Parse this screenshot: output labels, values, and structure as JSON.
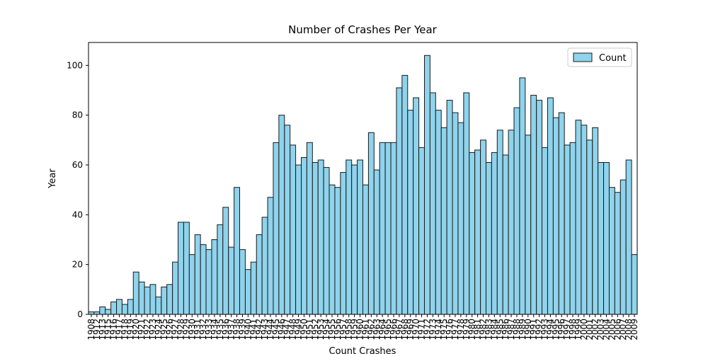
{
  "chart_data": {
    "type": "bar",
    "title": "Number of Crashes Per Year",
    "x_label": "Count Crashes",
    "y_label": "Year",
    "categories": [
      "1908",
      "1912",
      "1913",
      "1915",
      "1916",
      "1917",
      "1918",
      "1919",
      "1920",
      "1921",
      "1922",
      "1923",
      "1924",
      "1925",
      "1926",
      "1927",
      "1928",
      "1929",
      "1930",
      "1931",
      "1932",
      "1933",
      "1934",
      "1935",
      "1936",
      "1937",
      "1938",
      "1939",
      "1940",
      "1941",
      "1942",
      "1943",
      "1944",
      "1945",
      "1946",
      "1947",
      "1948",
      "1949",
      "1950",
      "1951",
      "1952",
      "1953",
      "1954",
      "1955",
      "1956",
      "1957",
      "1958",
      "1959",
      "1960",
      "1961",
      "1962",
      "1963",
      "1964",
      "1965",
      "1966",
      "1967",
      "1968",
      "1969",
      "1970",
      "1971",
      "1972",
      "1973",
      "1974",
      "1975",
      "1976",
      "1977",
      "1978",
      "1979",
      "1980",
      "1981",
      "1982",
      "1983",
      "1984",
      "1985",
      "1986",
      "1987",
      "1988",
      "1989",
      "1990",
      "1991",
      "1992",
      "1993",
      "1994",
      "1995",
      "1996",
      "1997",
      "1998",
      "1999",
      "2000",
      "2001",
      "2002",
      "2003",
      "2004",
      "2005",
      "2006",
      "2007",
      "2008",
      "2009"
    ],
    "series": [
      {
        "name": "Count",
        "color": "#8fd3ec",
        "values": [
          1,
          1,
          3,
          2,
          5,
          6,
          4,
          6,
          17,
          13,
          11,
          12,
          7,
          11,
          12,
          21,
          37,
          37,
          24,
          32,
          28,
          26,
          30,
          36,
          43,
          27,
          51,
          26,
          18,
          21,
          32,
          39,
          47,
          69,
          80,
          76,
          68,
          60,
          63,
          69,
          61,
          62,
          59,
          52,
          51,
          57,
          62,
          60,
          62,
          52,
          73,
          58,
          69,
          69,
          69,
          91,
          96,
          82,
          87,
          67,
          104,
          89,
          82,
          75,
          86,
          81,
          77,
          89,
          65,
          66,
          70,
          61,
          65,
          74,
          64,
          74,
          83,
          95,
          72,
          88,
          86,
          67,
          87,
          79,
          81,
          68,
          69,
          78,
          76,
          70,
          75,
          61,
          61,
          51,
          49,
          54,
          62,
          24
        ]
      }
    ],
    "ylim": [
      0,
      109.2
    ],
    "yticks": [
      0,
      20,
      40,
      60,
      80,
      100
    ],
    "legend": "upper right",
    "edge_color": "#1a1a1a"
  }
}
